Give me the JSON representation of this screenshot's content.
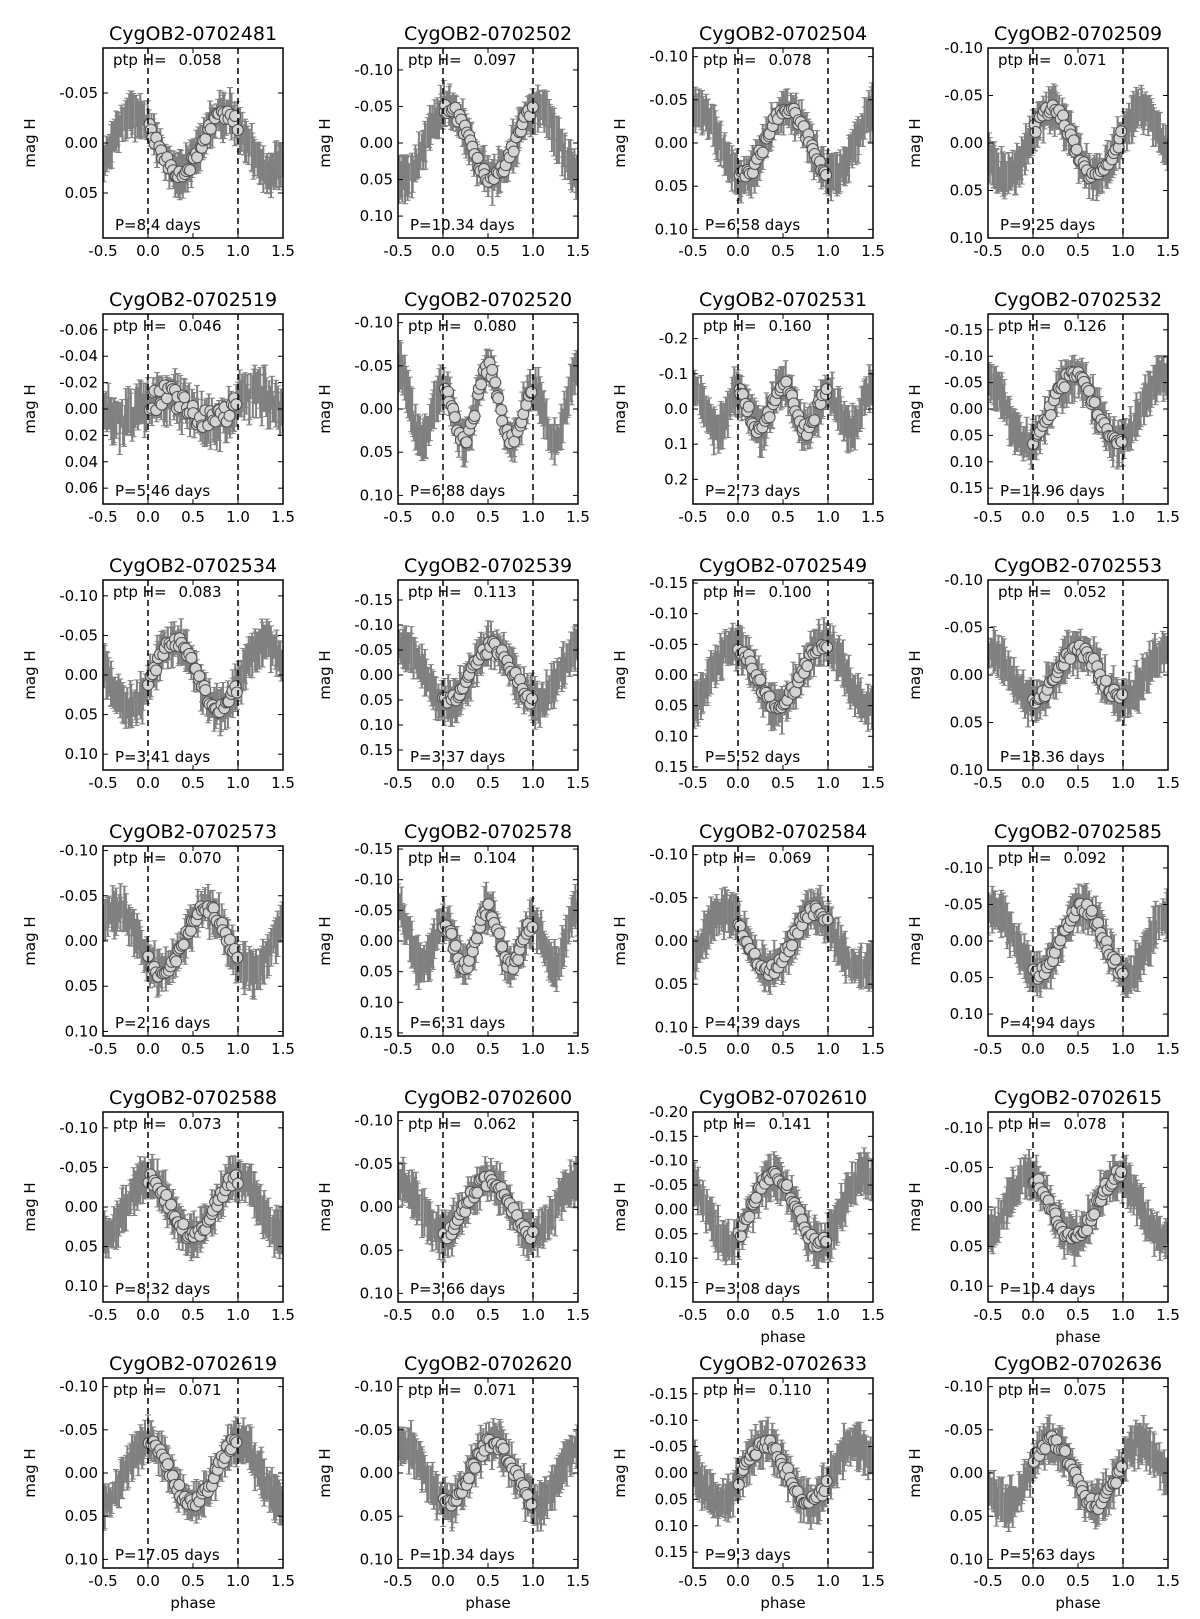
{
  "figure": {
    "y_axis_label": "mag H",
    "x_axis_label": "phase",
    "ptp_prefix": "ptp H=",
    "period_prefix": "P=",
    "period_suffix": " days",
    "colors": {
      "errorbar": "#808080",
      "point_fill": "#d3d3d3",
      "point_edge": "#505050",
      "axis": "#000000"
    }
  },
  "chart_data": [
    {
      "type": "scatter",
      "title": "CygOB2-0702481",
      "ptp": "0.058",
      "period": "8.4",
      "ylim": [
        0.095,
        -0.095
      ],
      "yticks": [
        "-0.05",
        "0.00",
        "0.05"
      ],
      "ytickvals": [
        -0.05,
        0,
        0.05
      ],
      "xlim": [
        -0.5,
        1.5
      ],
      "xticks": [
        "-0.5",
        "0.0",
        "0.5",
        "1.0",
        "1.5"
      ],
      "shape": "sin",
      "amp": 0.029,
      "phase0": 0.85,
      "x_axis_label_shown": false
    },
    {
      "type": "scatter",
      "title": "CygOB2-0702502",
      "ptp": "0.097",
      "period": "10.34",
      "ylim": [
        0.13,
        -0.13
      ],
      "yticks": [
        "-0.10",
        "-0.05",
        "0.00",
        "0.05",
        "0.10"
      ],
      "ytickvals": [
        -0.1,
        -0.05,
        0,
        0.05,
        0.1
      ],
      "xlim": [
        -0.5,
        1.5
      ],
      "xticks": [
        "-0.5",
        "0.0",
        "0.5",
        "1.0",
        "1.5"
      ],
      "shape": "sin",
      "amp": 0.048,
      "phase0": 0.05,
      "x_axis_label_shown": false
    },
    {
      "type": "scatter",
      "title": "CygOB2-0702504",
      "ptp": "0.078",
      "period": "6.58",
      "ylim": [
        0.11,
        -0.11
      ],
      "yticks": [
        "-0.10",
        "-0.05",
        "0.00",
        "0.05",
        "0.10"
      ],
      "ytickvals": [
        -0.1,
        -0.05,
        0,
        0.05,
        0.1
      ],
      "xlim": [
        -0.5,
        1.5
      ],
      "xticks": [
        "-0.5",
        "0.0",
        "0.5",
        "1.0",
        "1.5"
      ],
      "shape": "sin",
      "amp": 0.039,
      "phase0": 0.55,
      "x_axis_label_shown": false
    },
    {
      "type": "scatter",
      "title": "CygOB2-0702509",
      "ptp": "0.071",
      "period": "9.25",
      "ylim": [
        0.1,
        -0.1
      ],
      "yticks": [
        "-0.10",
        "-0.05",
        "0.00",
        "0.05",
        "0.10"
      ],
      "ytickvals": [
        -0.1,
        -0.05,
        0,
        0.05,
        0.1
      ],
      "xlim": [
        -0.5,
        1.5
      ],
      "xticks": [
        "-0.5",
        "0.0",
        "0.5",
        "1.0",
        "1.5"
      ],
      "shape": "sin",
      "amp": 0.035,
      "phase0": 0.2,
      "x_axis_label_shown": false
    },
    {
      "type": "scatter",
      "title": "CygOB2-0702519",
      "ptp": "0.046",
      "period": "5.46",
      "ylim": [
        0.072,
        -0.072
      ],
      "yticks": [
        "-0.06",
        "-0.04",
        "-0.02",
        "0.00",
        "0.02",
        "0.04",
        "0.06"
      ],
      "ytickvals": [
        -0.06,
        -0.04,
        -0.02,
        0,
        0.02,
        0.04,
        0.06
      ],
      "xlim": [
        -0.5,
        1.5
      ],
      "xticks": [
        "-0.5",
        "0.0",
        "0.5",
        "1.0",
        "1.5"
      ],
      "shape": "flat",
      "amp": 0.01,
      "phase0": 0.2,
      "x_axis_label_shown": false
    },
    {
      "type": "scatter",
      "title": "CygOB2-0702520",
      "ptp": "0.080",
      "period": "6.88",
      "ylim": [
        0.11,
        -0.11
      ],
      "yticks": [
        "-0.10",
        "-0.05",
        "0.00",
        "0.05",
        "0.10"
      ],
      "ytickvals": [
        -0.1,
        -0.05,
        0,
        0.05,
        0.1
      ],
      "xlim": [
        -0.5,
        1.5
      ],
      "xticks": [
        "-0.5",
        "0.0",
        "0.5",
        "1.0",
        "1.5"
      ],
      "shape": "double",
      "amp": 0.04,
      "phase0": 0.0,
      "x_axis_label_shown": false
    },
    {
      "type": "scatter",
      "title": "CygOB2-0702531",
      "ptp": "0.160",
      "period": "2.73",
      "ylim": [
        0.27,
        -0.27
      ],
      "yticks": [
        "-0.2",
        "-0.1",
        "0.0",
        "0.1",
        "0.2"
      ],
      "ytickvals": [
        -0.2,
        -0.1,
        0,
        0.1,
        0.2
      ],
      "xlim": [
        -0.5,
        1.5
      ],
      "xticks": [
        "-0.5",
        "0.0",
        "0.5",
        "1.0",
        "1.5"
      ],
      "shape": "double",
      "amp": 0.065,
      "phase0": 0.0,
      "x_axis_label_shown": false
    },
    {
      "type": "scatter",
      "title": "CygOB2-0702532",
      "ptp": "0.126",
      "period": "14.96",
      "ylim": [
        0.18,
        -0.18
      ],
      "yticks": [
        "-0.15",
        "-0.10",
        "-0.05",
        "0.00",
        "0.05",
        "0.10",
        "0.15"
      ],
      "ytickvals": [
        -0.15,
        -0.1,
        -0.05,
        0,
        0.05,
        0.1,
        0.15
      ],
      "xlim": [
        -0.5,
        1.5
      ],
      "xticks": [
        "-0.5",
        "0.0",
        "0.5",
        "1.0",
        "1.5"
      ],
      "shape": "sin",
      "amp": 0.063,
      "phase0": 0.45,
      "x_axis_label_shown": false
    },
    {
      "type": "scatter",
      "title": "CygOB2-0702534",
      "ptp": "0.083",
      "period": "3.41",
      "ylim": [
        0.12,
        -0.12
      ],
      "yticks": [
        "-0.10",
        "-0.05",
        "0.00",
        "0.05",
        "0.10"
      ],
      "ytickvals": [
        -0.1,
        -0.05,
        0,
        0.05,
        0.1
      ],
      "xlim": [
        -0.5,
        1.5
      ],
      "xticks": [
        "-0.5",
        "0.0",
        "0.5",
        "1.0",
        "1.5"
      ],
      "shape": "sin",
      "amp": 0.042,
      "phase0": 0.3,
      "x_axis_label_shown": false
    },
    {
      "type": "scatter",
      "title": "CygOB2-0702539",
      "ptp": "0.113",
      "period": "3.37",
      "ylim": [
        0.19,
        -0.19
      ],
      "yticks": [
        "-0.15",
        "-0.10",
        "-0.05",
        "0.00",
        "0.05",
        "0.10",
        "0.15"
      ],
      "ytickvals": [
        -0.15,
        -0.1,
        -0.05,
        0,
        0.05,
        0.1,
        0.15
      ],
      "xlim": [
        -0.5,
        1.5
      ],
      "xticks": [
        "-0.5",
        "0.0",
        "0.5",
        "1.0",
        "1.5"
      ],
      "shape": "sin",
      "amp": 0.056,
      "phase0": 0.55,
      "x_axis_label_shown": false
    },
    {
      "type": "scatter",
      "title": "CygOB2-0702549",
      "ptp": "0.100",
      "period": "5.52",
      "ylim": [
        0.155,
        -0.155
      ],
      "yticks": [
        "-0.15",
        "-0.10",
        "-0.05",
        "0.00",
        "0.05",
        "0.10",
        "0.15"
      ],
      "ytickvals": [
        -0.15,
        -0.1,
        -0.05,
        0,
        0.05,
        0.1,
        0.15
      ],
      "xlim": [
        -0.5,
        1.5
      ],
      "xticks": [
        "-0.5",
        "0.0",
        "0.5",
        "1.0",
        "1.5"
      ],
      "shape": "sin",
      "amp": 0.05,
      "phase0": 0.95,
      "x_axis_label_shown": false
    },
    {
      "type": "scatter",
      "title": "CygOB2-0702553",
      "ptp": "0.052",
      "period": "18.36",
      "ylim": [
        0.1,
        -0.1
      ],
      "yticks": [
        "-0.10",
        "-0.05",
        "0.00",
        "0.05",
        "0.10"
      ],
      "ytickvals": [
        -0.1,
        -0.05,
        0,
        0.05,
        0.1
      ],
      "xlim": [
        -0.5,
        1.5
      ],
      "xticks": [
        "-0.5",
        "0.0",
        "0.5",
        "1.0",
        "1.5"
      ],
      "shape": "sin",
      "amp": 0.026,
      "phase0": 0.5,
      "x_axis_label_shown": false
    },
    {
      "type": "scatter",
      "title": "CygOB2-0702573",
      "ptp": "0.070",
      "period": "2.16",
      "ylim": [
        0.105,
        -0.105
      ],
      "yticks": [
        "-0.10",
        "-0.05",
        "0.00",
        "0.05",
        "0.10"
      ],
      "ytickvals": [
        -0.1,
        -0.05,
        0,
        0.05,
        0.1
      ],
      "xlim": [
        -0.5,
        1.5
      ],
      "xticks": [
        "-0.5",
        "0.0",
        "0.5",
        "1.0",
        "1.5"
      ],
      "shape": "sin",
      "amp": 0.035,
      "phase0": 0.65,
      "x_axis_label_shown": false
    },
    {
      "type": "scatter",
      "title": "CygOB2-0702578",
      "ptp": "0.104",
      "period": "6.31",
      "ylim": [
        0.155,
        -0.155
      ],
      "yticks": [
        "-0.15",
        "-0.10",
        "-0.05",
        "0.00",
        "0.05",
        "0.10",
        "0.15"
      ],
      "ytickvals": [
        -0.15,
        -0.1,
        -0.05,
        0,
        0.05,
        0.1,
        0.15
      ],
      "xlim": [
        -0.5,
        1.5
      ],
      "xticks": [
        "-0.5",
        "0.0",
        "0.5",
        "1.0",
        "1.5"
      ],
      "shape": "double",
      "amp": 0.045,
      "phase0": 0.0,
      "x_axis_label_shown": false
    },
    {
      "type": "scatter",
      "title": "CygOB2-0702584",
      "ptp": "0.069",
      "period": "4.39",
      "ylim": [
        0.11,
        -0.11
      ],
      "yticks": [
        "-0.10",
        "-0.05",
        "0.00",
        "0.05",
        "0.10"
      ],
      "ytickvals": [
        -0.1,
        -0.05,
        0,
        0.05,
        0.1
      ],
      "xlim": [
        -0.5,
        1.5
      ],
      "xticks": [
        "-0.5",
        "0.0",
        "0.5",
        "1.0",
        "1.5"
      ],
      "shape": "sin",
      "amp": 0.034,
      "phase0": 0.85,
      "x_axis_label_shown": false
    },
    {
      "type": "scatter",
      "title": "CygOB2-0702585",
      "ptp": "0.092",
      "period": "4.94",
      "ylim": [
        0.13,
        -0.13
      ],
      "yticks": [
        "-0.10",
        "-0.05",
        "0.00",
        "0.05",
        "0.10"
      ],
      "ytickvals": [
        -0.1,
        -0.05,
        0,
        0.05,
        0.1
      ],
      "xlim": [
        -0.5,
        1.5
      ],
      "xticks": [
        "-0.5",
        "0.0",
        "0.5",
        "1.0",
        "1.5"
      ],
      "shape": "sin",
      "amp": 0.046,
      "phase0": 0.55,
      "x_axis_label_shown": false
    },
    {
      "type": "scatter",
      "title": "CygOB2-0702588",
      "ptp": "0.073",
      "period": "8.32",
      "ylim": [
        0.12,
        -0.12
      ],
      "yticks": [
        "-0.10",
        "-0.05",
        "0.00",
        "0.05",
        "0.10"
      ],
      "ytickvals": [
        -0.1,
        -0.05,
        0,
        0.05,
        0.1
      ],
      "xlim": [
        -0.5,
        1.5
      ],
      "xticks": [
        "-0.5",
        "0.0",
        "0.5",
        "1.0",
        "1.5"
      ],
      "shape": "sin",
      "amp": 0.036,
      "phase0": 0.0,
      "x_axis_label_shown": false
    },
    {
      "type": "scatter",
      "title": "CygOB2-0702600",
      "ptp": "0.062",
      "period": "3.66",
      "ylim": [
        0.11,
        -0.11
      ],
      "yticks": [
        "-0.10",
        "-0.05",
        "0.00",
        "0.05",
        "0.10"
      ],
      "ytickvals": [
        -0.1,
        -0.05,
        0,
        0.05,
        0.1
      ],
      "xlim": [
        -0.5,
        1.5
      ],
      "xticks": [
        "-0.5",
        "0.0",
        "0.5",
        "1.0",
        "1.5"
      ],
      "shape": "sin",
      "amp": 0.031,
      "phase0": 0.5,
      "x_axis_label_shown": false
    },
    {
      "type": "scatter",
      "title": "CygOB2-0702610",
      "ptp": "0.141",
      "period": "3.08",
      "ylim": [
        0.19,
        -0.2
      ],
      "yticks": [
        "-0.20",
        "-0.15",
        "-0.10",
        "-0.05",
        "0.00",
        "0.05",
        "0.10",
        "0.15"
      ],
      "ytickvals": [
        -0.2,
        -0.15,
        -0.1,
        -0.05,
        0,
        0.05,
        0.1,
        0.15
      ],
      "xlim": [
        -0.5,
        1.5
      ],
      "xticks": [
        "-0.5",
        "0.0",
        "0.5",
        "1.0",
        "1.5"
      ],
      "shape": "sin",
      "amp": 0.07,
      "phase0": 0.4,
      "x_axis_label_shown": true
    },
    {
      "type": "scatter",
      "title": "CygOB2-0702615",
      "ptp": "0.078",
      "period": "10.4",
      "ylim": [
        0.12,
        -0.12
      ],
      "yticks": [
        "-0.10",
        "-0.05",
        "0.00",
        "0.05",
        "0.10"
      ],
      "ytickvals": [
        -0.1,
        -0.05,
        0,
        0.05,
        0.1
      ],
      "xlim": [
        -0.5,
        1.5
      ],
      "xticks": [
        "-0.5",
        "0.0",
        "0.5",
        "1.0",
        "1.5"
      ],
      "shape": "sin",
      "amp": 0.039,
      "phase0": 0.95,
      "x_axis_label_shown": true
    },
    {
      "type": "scatter",
      "title": "CygOB2-0702619",
      "ptp": "0.071",
      "period": "17.05",
      "ylim": [
        0.11,
        -0.11
      ],
      "yticks": [
        "-0.10",
        "-0.05",
        "0.00",
        "0.05",
        "0.10"
      ],
      "ytickvals": [
        -0.1,
        -0.05,
        0,
        0.05,
        0.1
      ],
      "xlim": [
        -0.5,
        1.5
      ],
      "xticks": [
        "-0.5",
        "0.0",
        "0.5",
        "1.0",
        "1.5"
      ],
      "shape": "sin",
      "amp": 0.035,
      "phase0": 0.0,
      "x_axis_label_shown": true
    },
    {
      "type": "scatter",
      "title": "CygOB2-0702620",
      "ptp": "0.071",
      "period": "10.34",
      "ylim": [
        0.11,
        -0.11
      ],
      "yticks": [
        "-0.10",
        "-0.05",
        "0.00",
        "0.05",
        "0.10"
      ],
      "ytickvals": [
        -0.1,
        -0.05,
        0,
        0.05,
        0.1
      ],
      "xlim": [
        -0.5,
        1.5
      ],
      "xticks": [
        "-0.5",
        "0.0",
        "0.5",
        "1.0",
        "1.5"
      ],
      "shape": "sin",
      "amp": 0.035,
      "phase0": 0.55,
      "x_axis_label_shown": true
    },
    {
      "type": "scatter",
      "title": "CygOB2-0702633",
      "ptp": "0.110",
      "period": "9.3",
      "ylim": [
        0.18,
        -0.18
      ],
      "yticks": [
        "-0.15",
        "-0.10",
        "-0.05",
        "0.00",
        "0.05",
        "0.10",
        "0.15"
      ],
      "ytickvals": [
        -0.15,
        -0.1,
        -0.05,
        0,
        0.05,
        0.1,
        0.15
      ],
      "xlim": [
        -0.5,
        1.5
      ],
      "xticks": [
        "-0.5",
        "0.0",
        "0.5",
        "1.0",
        "1.5"
      ],
      "shape": "sin",
      "amp": 0.055,
      "phase0": 0.3,
      "x_axis_label_shown": true
    },
    {
      "type": "scatter",
      "title": "CygOB2-0702636",
      "ptp": "0.075",
      "period": "5.63",
      "ylim": [
        0.11,
        -0.11
      ],
      "yticks": [
        "-0.10",
        "-0.05",
        "0.00",
        "0.05",
        "0.10"
      ],
      "ytickvals": [
        -0.1,
        -0.05,
        0,
        0.05,
        0.1
      ],
      "xlim": [
        -0.5,
        1.5
      ],
      "xticks": [
        "-0.5",
        "0.0",
        "0.5",
        "1.0",
        "1.5"
      ],
      "shape": "sin",
      "amp": 0.037,
      "phase0": 0.2,
      "x_axis_label_shown": true
    }
  ]
}
